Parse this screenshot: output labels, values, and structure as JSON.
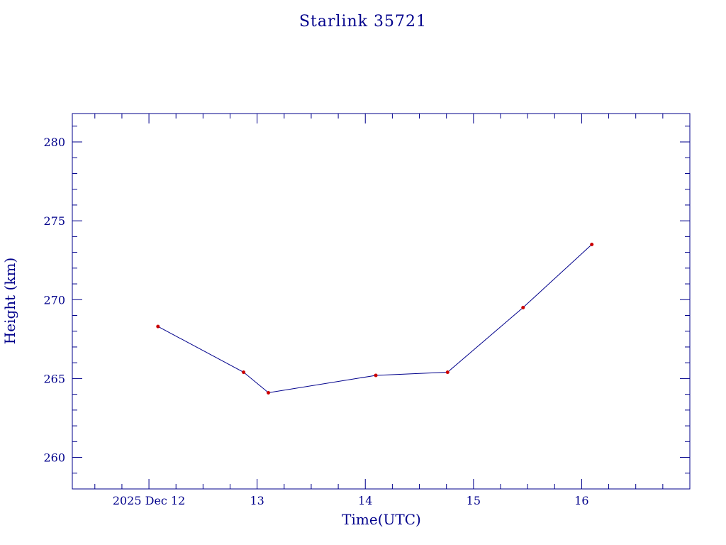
{
  "chart_data": {
    "type": "line",
    "title": "Starlink 35721",
    "xlabel": "Time(UTC)",
    "ylabel": "Height (km)",
    "x_tick_labels": [
      "2025 Dec 12",
      "13",
      "14",
      "15",
      "16"
    ],
    "y_tick_labels": [
      "260",
      "265",
      "270",
      "275",
      "280"
    ],
    "xlim": [
      "2025-12-11T07:00Z",
      "2025-12-17T00:00Z"
    ],
    "ylim": [
      258.0,
      281.8
    ],
    "series": [
      {
        "x": [
          "2025-12-12T02:00Z",
          "2025-12-12T21:00Z",
          "2025-12-13T02:30Z",
          "2025-12-14T02:20Z",
          "2025-12-14T18:15Z",
          "2025-12-15T11:00Z",
          "2025-12-16T02:15Z"
        ],
        "y": [
          268.3,
          265.4,
          264.1,
          265.2,
          265.4,
          269.5,
          273.5
        ]
      }
    ],
    "grid": false,
    "colors": {
      "axes": "#00008b",
      "line": "#00008b",
      "markers": "#cc0000",
      "background": "#ffffff"
    }
  }
}
